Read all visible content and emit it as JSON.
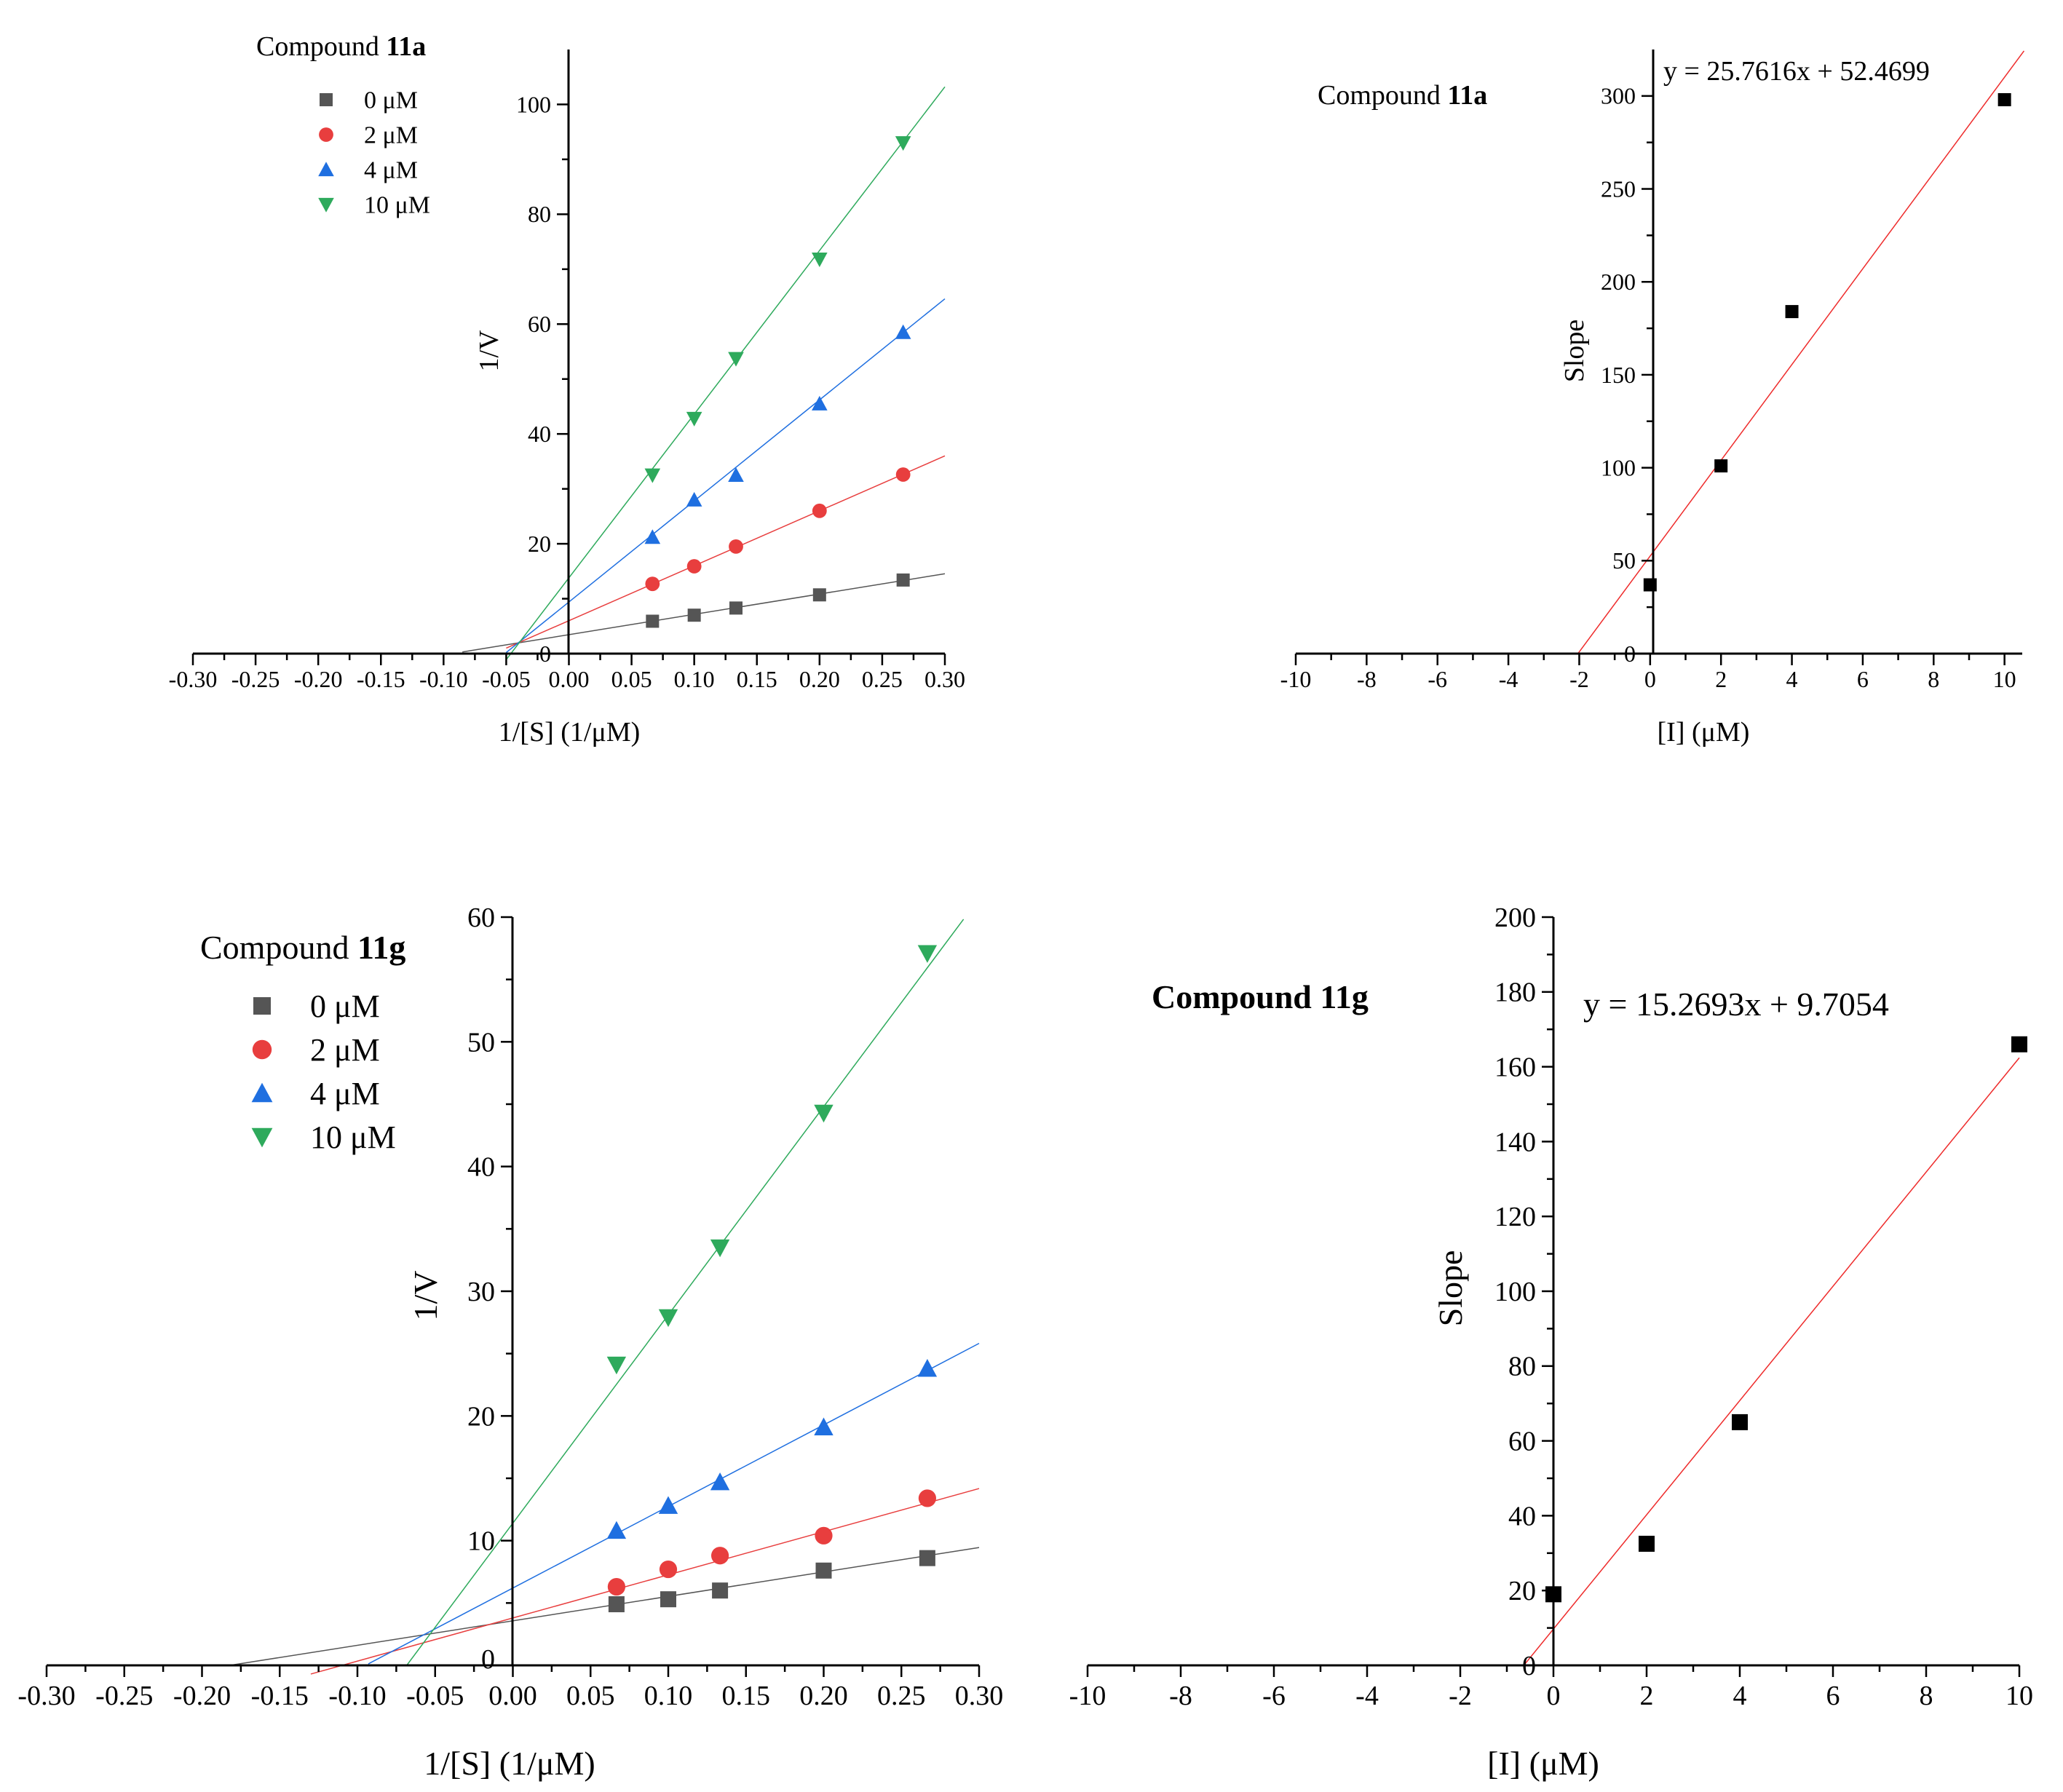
{
  "chart_data": [
    {
      "id": "lb-11a",
      "type": "scatter",
      "title": "Compound 11a",
      "title_prefix": "Compound",
      "title_bold": "11a",
      "xlabel": "1/[S] (1/μM)",
      "ylabel": "1/V",
      "xlim": [
        -0.3,
        0.3
      ],
      "ylim": [
        0,
        110
      ],
      "xticks": [
        -0.3,
        -0.25,
        -0.2,
        -0.15,
        -0.1,
        -0.05,
        0.0,
        0.05,
        0.1,
        0.15,
        0.2,
        0.25,
        0.3
      ],
      "xtick_labels": [
        "-0.30",
        "-0.25",
        "-0.20",
        "-0.15",
        "-0.10",
        "-0.05",
        "0.00",
        "0.05",
        "0.10",
        "0.15",
        "0.20",
        "0.25",
        "0.30"
      ],
      "yticks": [
        0,
        20,
        40,
        60,
        80,
        100
      ],
      "ytick_labels": [
        "0",
        "20",
        "40",
        "60",
        "80",
        "100"
      ],
      "legend_position": "top-left",
      "series": [
        {
          "name": "0 μM",
          "color": "#555555",
          "marker": "square",
          "x": [
            0.0667,
            0.1,
            0.1333,
            0.2,
            0.2667
          ],
          "y": [
            5.9,
            7.0,
            8.3,
            10.7,
            13.4
          ],
          "fit": {
            "x0": -0.085,
            "x1": 0.3,
            "slope": 37.0,
            "intercept": 3.45
          }
        },
        {
          "name": "2 μM",
          "color": "#e83e3e",
          "marker": "circle",
          "x": [
            0.0667,
            0.1,
            0.1333,
            0.2,
            0.2667
          ],
          "y": [
            12.7,
            15.9,
            19.5,
            26.0,
            32.6
          ],
          "fit": {
            "x0": -0.05,
            "x1": 0.3,
            "slope": 100.0,
            "intercept": 6.0
          }
        },
        {
          "name": "4 μM",
          "color": "#1f6fe0",
          "marker": "triangle-up",
          "x": [
            0.0667,
            0.1,
            0.1333,
            0.2,
            0.2667
          ],
          "y": [
            21.2,
            28.0,
            32.5,
            45.5,
            58.5
          ],
          "fit": {
            "x0": -0.05,
            "x1": 0.3,
            "slope": 184.0,
            "intercept": 9.4
          }
        },
        {
          "name": "10 μM",
          "color": "#2eaa5c",
          "marker": "triangle-down",
          "x": [
            0.0667,
            0.1,
            0.1333,
            0.2,
            0.2667
          ],
          "y": [
            32.5,
            42.8,
            53.7,
            71.8,
            93.0
          ],
          "fit": {
            "x0": -0.05,
            "x1": 0.3,
            "slope": 298.0,
            "intercept": 13.8
          }
        }
      ]
    },
    {
      "id": "sec-11a",
      "type": "scatter",
      "title": "Compound 11a",
      "title_prefix": "Compound",
      "title_bold": "11a",
      "equation": "y = 25.7616x + 52.4699",
      "xlabel": "[I] (μM)",
      "ylabel": "Slope",
      "xlim": [
        -10,
        10.5
      ],
      "ylim": [
        0,
        325
      ],
      "xticks": [
        -10,
        -8,
        -6,
        -4,
        -2,
        0,
        2,
        4,
        6,
        8,
        10
      ],
      "xtick_labels": [
        "-10",
        "-8",
        "-6",
        "-4",
        "-2",
        "0",
        "2",
        "4",
        "6",
        "8",
        "10"
      ],
      "yticks": [
        0,
        50,
        100,
        150,
        200,
        250,
        300
      ],
      "ytick_labels": [
        "0",
        "50",
        "100",
        "150",
        "200",
        "250",
        "300"
      ],
      "series": [
        {
          "name": "Slope",
          "color": "#000000",
          "marker": "square",
          "x": [
            0,
            2,
            4,
            10
          ],
          "y": [
            37,
            101,
            184,
            298
          ],
          "fit": {
            "x0": -2.04,
            "x1": 10.55,
            "slope": 25.7616,
            "intercept": 52.4699,
            "color": "#ee2b2b"
          }
        }
      ]
    },
    {
      "id": "lb-11g",
      "type": "scatter",
      "title": "Compound 11g",
      "title_prefix": "Compound",
      "title_bold": "11g",
      "xlabel": "1/[S] (1/μM)",
      "ylabel": "1/V",
      "xlim": [
        -0.3,
        0.3
      ],
      "ylim": [
        0,
        60
      ],
      "xticks": [
        -0.3,
        -0.25,
        -0.2,
        -0.15,
        -0.1,
        -0.05,
        0.0,
        0.05,
        0.1,
        0.15,
        0.2,
        0.25,
        0.3
      ],
      "xtick_labels": [
        "-0.30",
        "-0.25",
        "-0.20",
        "-0.15",
        "-0.10",
        "-0.05",
        "0.00",
        "0.05",
        "0.10",
        "0.15",
        "0.20",
        "0.25",
        "0.30"
      ],
      "yticks": [
        10,
        20,
        30,
        40,
        50,
        60
      ],
      "ytick_labels": [
        "10",
        "20",
        "30",
        "40",
        "50",
        "60"
      ],
      "origin_label": "0",
      "legend_position": "top-left",
      "series": [
        {
          "name": "0 μM",
          "color": "#555555",
          "marker": "square",
          "x": [
            0.0667,
            0.1,
            0.1333,
            0.2,
            0.2667
          ],
          "y": [
            4.9,
            5.3,
            6.0,
            7.6,
            8.6
          ],
          "fit": {
            "x0": -0.182,
            "x1": 0.3,
            "slope": 19.6,
            "intercept": 3.57
          }
        },
        {
          "name": "2 μM",
          "color": "#e83e3e",
          "marker": "circle",
          "x": [
            0.0667,
            0.1,
            0.1333,
            0.2,
            0.2667
          ],
          "y": [
            6.3,
            7.7,
            8.8,
            10.4,
            13.4
          ],
          "fit": {
            "x0": -0.13,
            "x1": 0.3,
            "slope": 34.6,
            "intercept": 3.8
          }
        },
        {
          "name": "4 μM",
          "color": "#1f6fe0",
          "marker": "triangle-up",
          "x": [
            0.0667,
            0.1,
            0.1333,
            0.2,
            0.2667
          ],
          "y": [
            10.8,
            12.8,
            14.7,
            19.1,
            23.8
          ],
          "fit": {
            "x0": -0.093,
            "x1": 0.3,
            "slope": 65.4,
            "intercept": 6.2
          }
        },
        {
          "name": "10 μM",
          "color": "#2eaa5c",
          "marker": "triangle-down",
          "x": [
            0.0667,
            0.1,
            0.1333,
            0.2,
            0.2667
          ],
          "y": [
            24.1,
            27.9,
            33.5,
            44.3,
            57.1
          ],
          "fit": {
            "x0": -0.068,
            "x1": 0.29,
            "slope": 167.0,
            "intercept": 11.4
          }
        }
      ]
    },
    {
      "id": "sec-11g",
      "type": "scatter",
      "title": "Compound 11g",
      "title_prefix": "Compound",
      "title_bold": "11g",
      "title_all_bold": true,
      "equation": "y = 15.2693x + 9.7054",
      "xlabel": "[I] (μM)",
      "ylabel": "Slope",
      "xlim": [
        -10,
        10
      ],
      "ylim": [
        0,
        200
      ],
      "xticks": [
        -10,
        -8,
        -6,
        -4,
        -2,
        0,
        2,
        4,
        6,
        8,
        10
      ],
      "xtick_labels": [
        "-10",
        "-8",
        "-6",
        "-4",
        "-2",
        "0",
        "2",
        "4",
        "6",
        "8",
        "10"
      ],
      "yticks": [
        0,
        20,
        40,
        60,
        80,
        100,
        120,
        140,
        160,
        180,
        200
      ],
      "ytick_labels": [
        "0",
        "20",
        "40",
        "60",
        "80",
        "100",
        "120",
        "140",
        "160",
        "180",
        "200"
      ],
      "series": [
        {
          "name": "Slope",
          "color": "#000000",
          "marker": "square",
          "x": [
            0,
            2,
            4,
            10
          ],
          "y": [
            19,
            32.5,
            65,
            166
          ],
          "fit": {
            "x0": -0.64,
            "x1": 10,
            "slope": 15.2693,
            "intercept": 9.7054,
            "color": "#ee2b2b"
          }
        }
      ]
    }
  ]
}
